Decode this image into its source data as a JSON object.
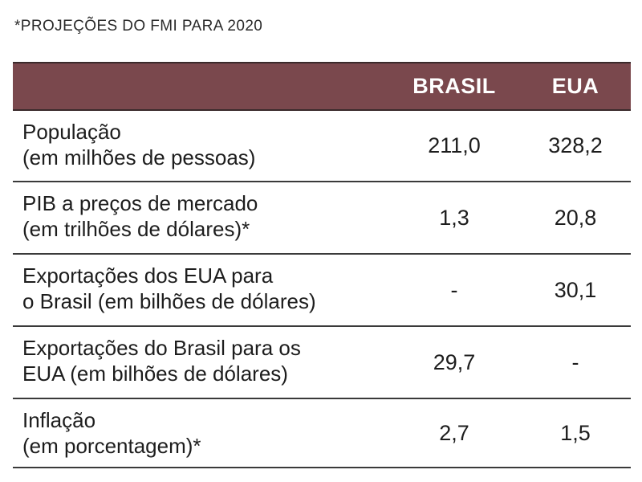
{
  "subtitle": "*PROJEÇÕES DO FMI PARA 2020",
  "columns": [
    "BRASIL",
    "EUA"
  ],
  "rows": [
    {
      "label_lines": [
        "População",
        "(em milhões de pessoas)"
      ],
      "brasil": "211,0",
      "eua": "328,2"
    },
    {
      "label_lines": [
        "PIB a preços de mercado",
        "(em trilhões de dólares)*"
      ],
      "brasil": "1,3",
      "eua": "20,8"
    },
    {
      "label_lines": [
        "Exportações dos EUA para",
        "o Brasil (em bilhões de dólares)"
      ],
      "brasil": "-",
      "eua": "30,1"
    },
    {
      "label_lines": [
        "Exportações do Brasil para os",
        "EUA (em bilhões de dólares)"
      ],
      "brasil": "29,7",
      "eua": "-"
    },
    {
      "label_lines": [
        "Inflação",
        "(em porcentagem)*"
      ],
      "brasil": "2,7",
      "eua": "1,5"
    }
  ],
  "colors": {
    "header_bg": "#7a484d",
    "header_text": "#ffffff",
    "rule": "#3a3a3a"
  }
}
